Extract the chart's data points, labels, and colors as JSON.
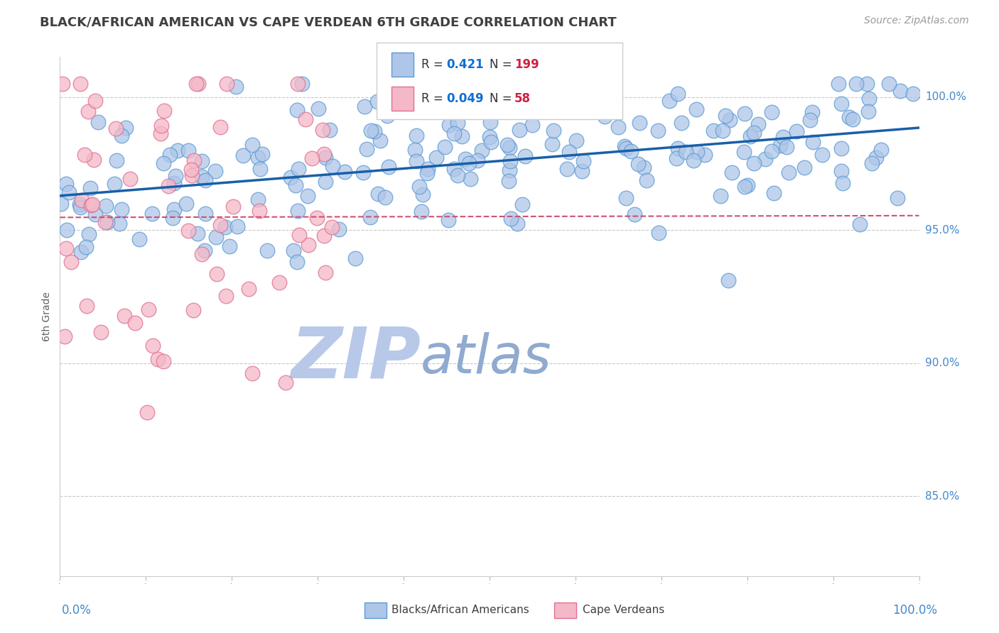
{
  "title": "BLACK/AFRICAN AMERICAN VS CAPE VERDEAN 6TH GRADE CORRELATION CHART",
  "source": "Source: ZipAtlas.com",
  "ylabel": "6th Grade",
  "ylabel_right_labels": [
    "85.0%",
    "90.0%",
    "95.0%",
    "100.0%"
  ],
  "ylabel_right_values": [
    0.85,
    0.9,
    0.95,
    1.0
  ],
  "blue_R": 0.421,
  "blue_N": 199,
  "pink_R": 0.049,
  "pink_N": 58,
  "blue_color": "#aec6e8",
  "blue_edge": "#5b9bd5",
  "pink_color": "#f4b8c8",
  "pink_edge": "#e07090",
  "blue_line_color": "#1a5fa8",
  "pink_line_color": "#d05070",
  "watermark_zip_color": "#b8c8e8",
  "watermark_atlas_color": "#90aad0",
  "legend_R_color": "#1070d0",
  "legend_N_color": "#cc2244",
  "background_color": "#ffffff",
  "grid_color": "#c8c8c8",
  "title_color": "#404040",
  "right_axis_color": "#4488cc",
  "seed": 7,
  "xlim": [
    0.0,
    1.0
  ],
  "ylim": [
    0.82,
    1.015
  ]
}
